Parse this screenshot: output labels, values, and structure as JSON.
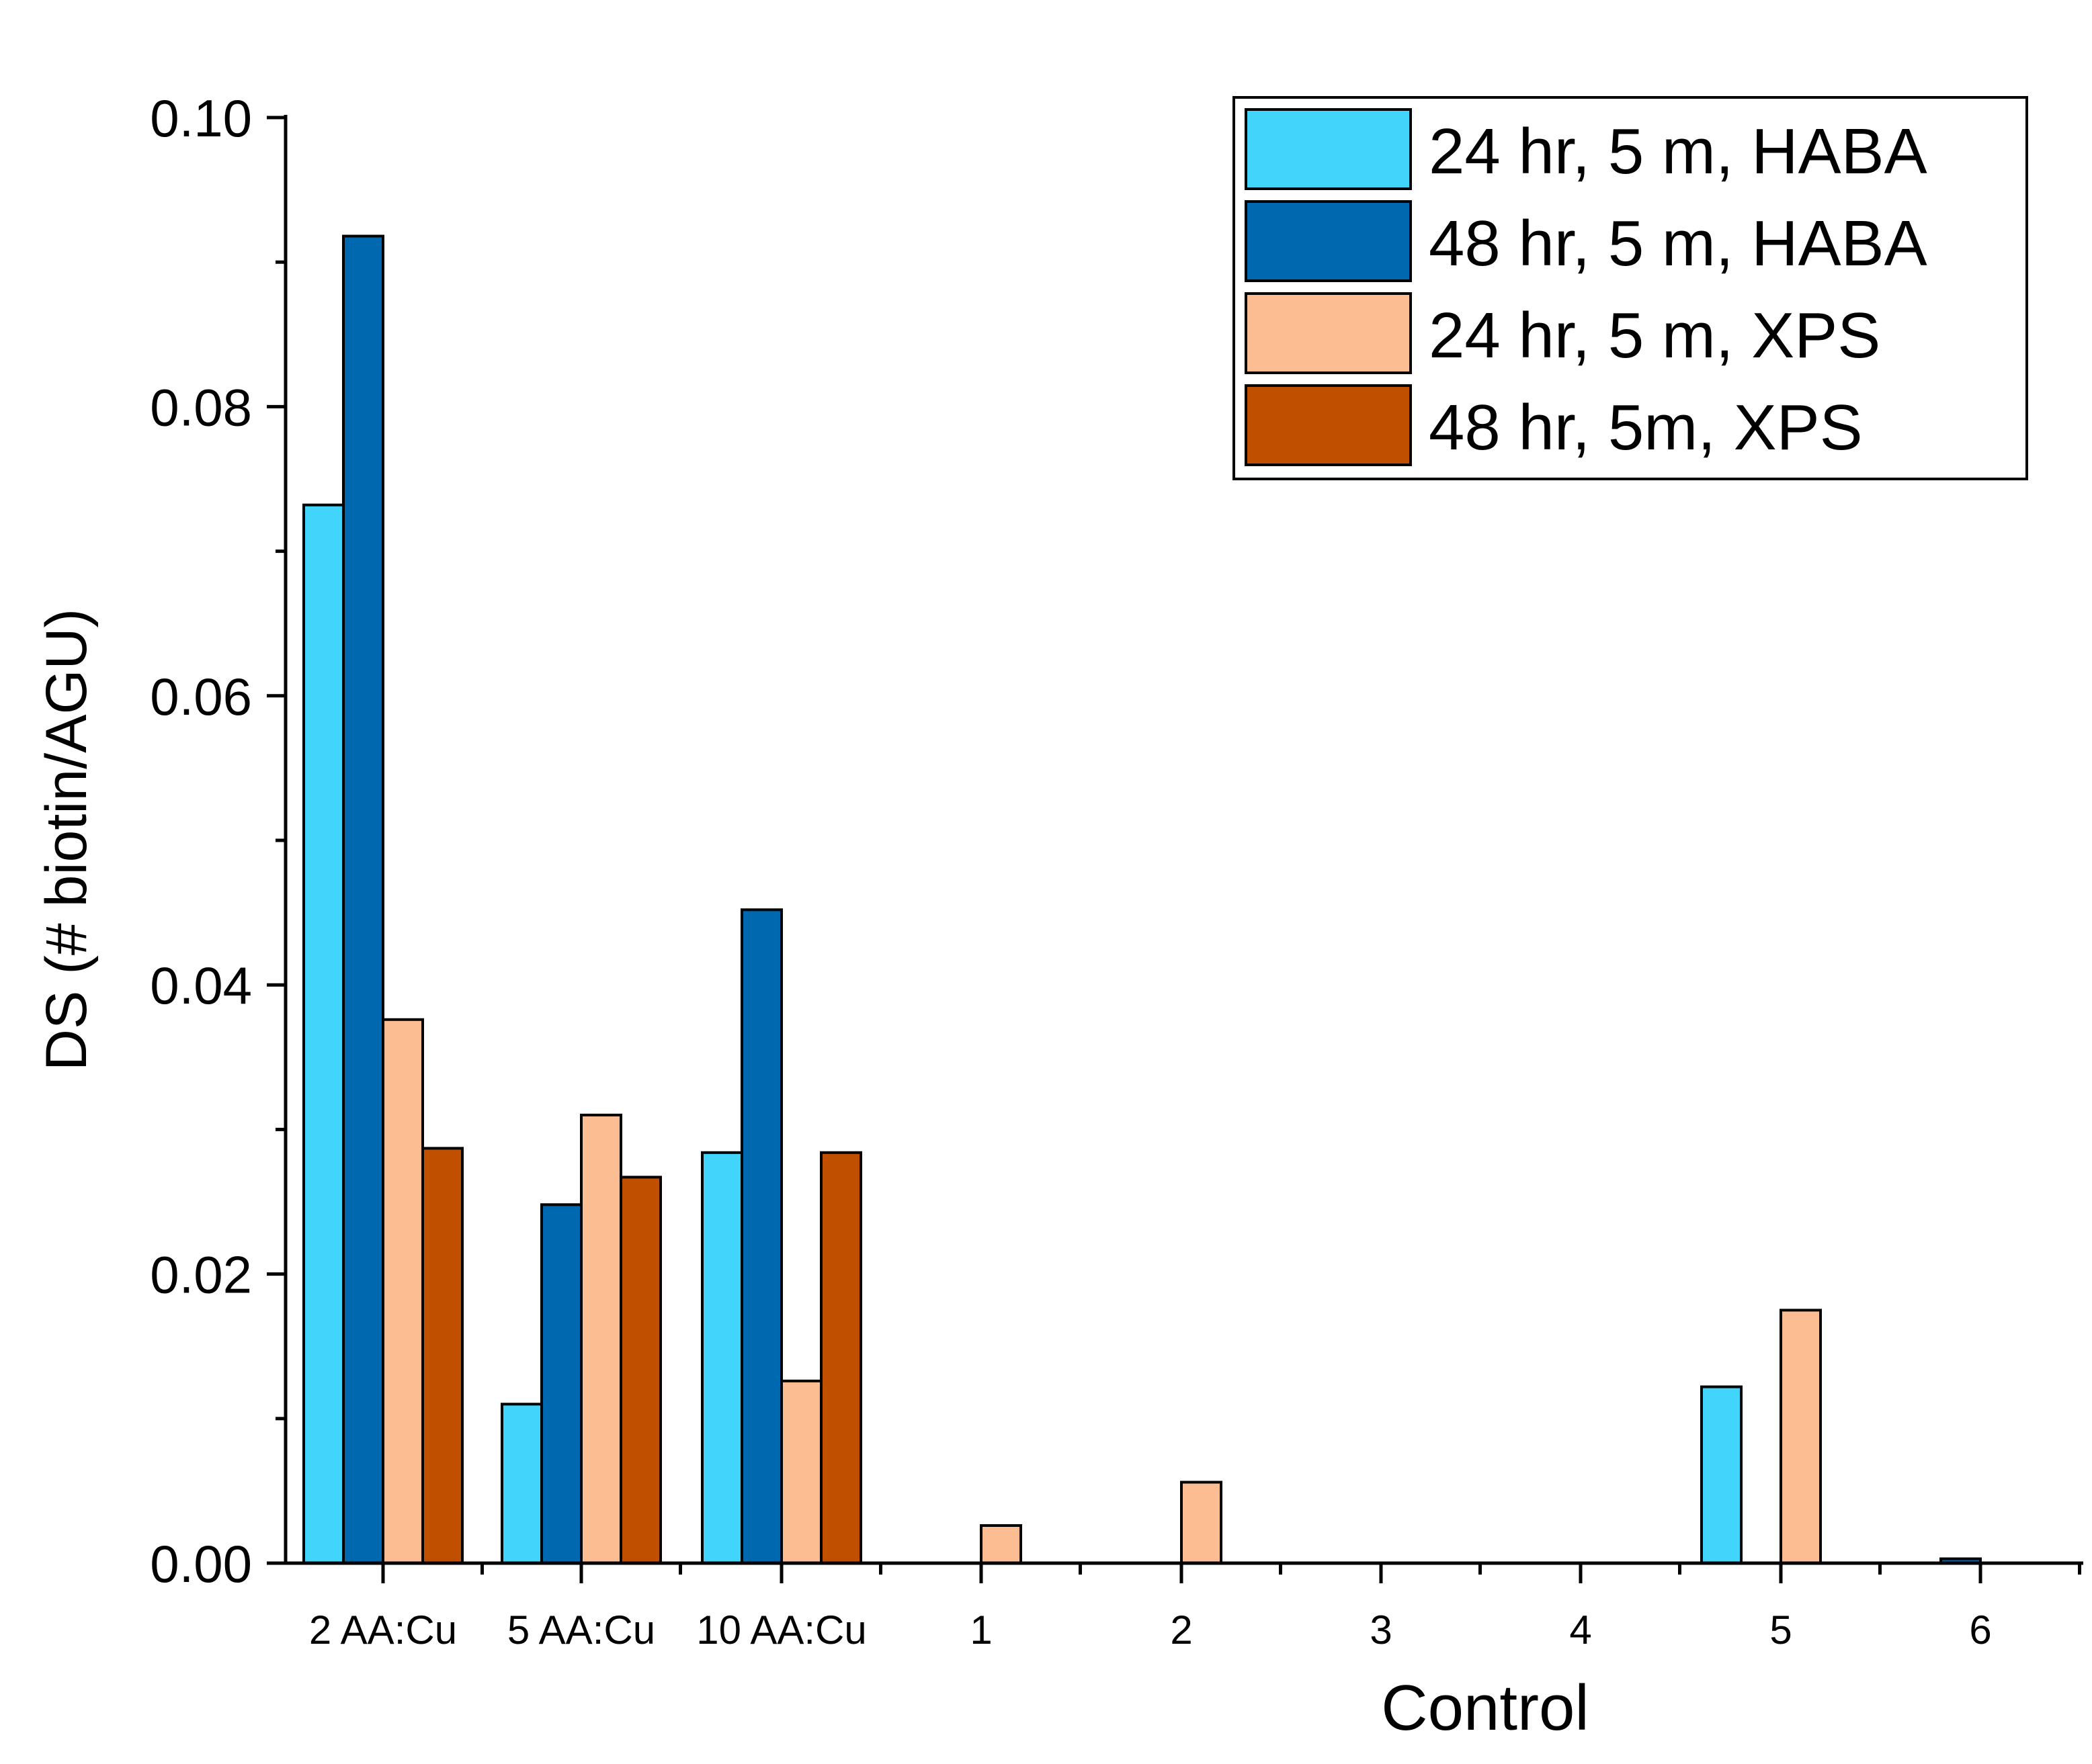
{
  "chart_data": {
    "type": "bar",
    "title": "",
    "xlabel": "Control",
    "ylabel": "DS (# biotin/AGU)",
    "ylim": [
      0,
      0.1
    ],
    "yticks": [
      "0.00",
      "0.02",
      "0.04",
      "0.06",
      "0.08",
      "0.10"
    ],
    "ytick_values": [
      0,
      0.02,
      0.04,
      0.06,
      0.08,
      0.1
    ],
    "categories": [
      "2 AA:Cu",
      "5 AA:Cu",
      "10 AA:Cu",
      "1",
      "2",
      "3",
      "4",
      "5",
      "6"
    ],
    "legend_position": "top-right",
    "series": [
      {
        "name": "24 hr, 5 m, HABA",
        "color": "#42D4FA",
        "values": [
          0.0732,
          0.011,
          0.0284,
          0,
          0,
          0,
          0,
          0.0122,
          0
        ]
      },
      {
        "name": "48 hr, 5 m, HABA",
        "color": "#0068AE",
        "values": [
          0.0918,
          0.0248,
          0.0452,
          0,
          0,
          0,
          0,
          0,
          0.0003
        ]
      },
      {
        "name": "24 hr, 5 m, XPS",
        "color": "#FDBD93",
        "values": [
          0.0376,
          0.031,
          0.0126,
          0.0026,
          0.0056,
          0,
          0,
          0.0175,
          0
        ]
      },
      {
        "name": "48 hr, 5m, XPS",
        "color": "#C04F00",
        "values": [
          0.0287,
          0.0267,
          0.0284,
          0,
          0,
          0,
          0,
          0,
          0
        ]
      }
    ]
  }
}
